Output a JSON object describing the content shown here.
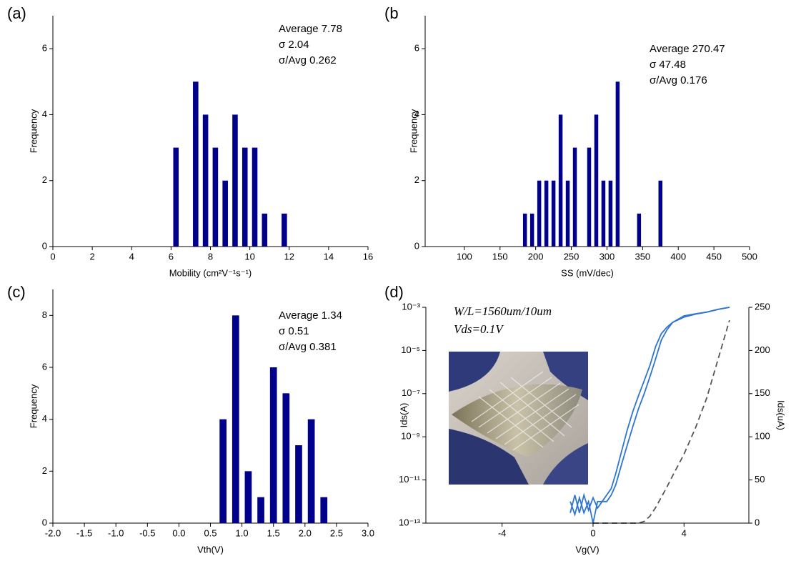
{
  "chart_data": [
    {
      "type": "bar",
      "label": "(a)",
      "color": "#00008b",
      "x": [
        6.25,
        7.25,
        7.75,
        8.25,
        8.75,
        9.25,
        9.75,
        10.25,
        10.75,
        11.75
      ],
      "values": [
        3,
        5,
        4,
        3,
        2,
        4,
        3,
        3,
        1,
        1
      ],
      "xlim": [
        0,
        16
      ],
      "xticks": [
        0,
        2,
        4,
        6,
        8,
        10,
        12,
        14,
        16
      ],
      "ylim": [
        0,
        7
      ],
      "yticks": [
        0,
        2,
        4,
        6
      ],
      "xlabel": "Mobility (cm²V⁻¹s⁻¹)",
      "ylabel": "Frequency",
      "annotations": [
        "Average 7.78",
        "σ 2.04",
        "σ/Avg 0.262"
      ]
    },
    {
      "type": "bar",
      "label": "(b",
      "color": "#00008b",
      "x": [
        185,
        195,
        205,
        215,
        225,
        235,
        245,
        255,
        275,
        285,
        295,
        305,
        315,
        345,
        375
      ],
      "values": [
        1,
        1,
        2,
        2,
        2,
        4,
        2,
        3,
        3,
        4,
        2,
        2,
        5,
        1,
        2
      ],
      "xlim": [
        45,
        500
      ],
      "xticks": [
        100,
        150,
        200,
        250,
        300,
        350,
        400,
        450,
        500
      ],
      "ylim": [
        0,
        7
      ],
      "yticks": [
        0,
        2,
        4,
        6
      ],
      "xlabel": "SS (mV/dec)",
      "ylabel": "Frequency",
      "annotations": [
        "Average 270.47",
        "σ 47.48",
        "σ/Avg 0.176"
      ]
    },
    {
      "type": "bar",
      "label": "(c)",
      "color": "#00008b",
      "x": [
        0.7,
        0.9,
        1.1,
        1.3,
        1.5,
        1.7,
        1.9,
        2.1,
        2.3
      ],
      "values": [
        4,
        8,
        2,
        1,
        6,
        5,
        3,
        4,
        1
      ],
      "xlim": [
        -2,
        3
      ],
      "xticks": [
        {
          "value": -2,
          "label": "-2.0"
        },
        {
          "value": -1.5,
          "label": "-1.5"
        },
        {
          "value": -1,
          "label": "-1.0"
        },
        {
          "value": -0.5,
          "label": "-0.5"
        },
        {
          "value": 0,
          "label": "0.0"
        },
        {
          "value": 0.5,
          "label": "0.5"
        },
        {
          "value": 1,
          "label": "1.0"
        },
        {
          "value": 1.5,
          "label": "1.5"
        },
        {
          "value": 2,
          "label": "2.0"
        },
        {
          "value": 2.5,
          "label": "2.5"
        },
        {
          "value": 3,
          "label": "3.0"
        }
      ],
      "ylim": [
        0,
        9
      ],
      "yticks": [
        0,
        2,
        4,
        6,
        8
      ],
      "xlabel": "Vth(V)",
      "ylabel": "Frequency",
      "annotations": [
        "Average 1.34",
        "σ 0.51",
        "σ/Avg 0.381"
      ]
    },
    {
      "type": "line",
      "label": "(d)",
      "yscale": "log",
      "x": [
        -1,
        -0.8,
        -0.6,
        -0.4,
        -0.2,
        0,
        0.2,
        0.4,
        0.6,
        0.8,
        1,
        1.25,
        1.5,
        1.75,
        2,
        2.25,
        2.5,
        2.75,
        3,
        3.25,
        3.5,
        4,
        4.5,
        5,
        5.5,
        6
      ],
      "series": [
        {
          "color": "#2e75d0",
          "axis": "y",
          "values": [
            3e-13,
            2e-12,
            3e-13,
            2e-12,
            4e-13,
            1.5e-12,
            5e-13,
            1e-12,
            2e-12,
            4e-12,
            2e-11,
            2e-10,
            2e-09,
            1.5e-08,
            8e-08,
            4e-07,
            2e-06,
            1.5e-05,
            6e-05,
            0.00012,
            0.0002,
            0.0004,
            0.0005,
            0.0006,
            0.0008,
            0.001
          ]
        },
        {
          "color": "#2e75d0",
          "axis": "y",
          "values": [
            1e-12,
            2.5e-13,
            1.5e-12,
            3e-13,
            1e-12,
            1e-13,
            1e-12,
            1e-12,
            1e-12,
            2e-12,
            6e-12,
            5e-11,
            4e-10,
            3e-09,
            2e-08,
            1e-07,
            6e-07,
            4e-06,
            3e-05,
            9e-05,
            0.0002,
            0.00035,
            0.00048,
            0.0006,
            0.0008,
            0.001
          ]
        },
        {
          "color": "#555555",
          "axis": "y2",
          "dashed": true,
          "values": [
            null,
            null,
            null,
            null,
            null,
            0,
            0,
            0,
            0,
            0,
            0,
            0,
            0,
            0,
            0,
            2,
            8,
            18,
            30,
            42,
            55,
            80,
            110,
            145,
            190,
            235
          ]
        }
      ],
      "xlim": [
        -7.35,
        6.85
      ],
      "xticks": [
        -4,
        0,
        4
      ],
      "ylim": [
        1e-13,
        0.001
      ],
      "yticks": [
        {
          "value": 1e-13,
          "label": "10⁻¹³"
        },
        {
          "value": 1e-11,
          "label": "10⁻¹¹"
        },
        {
          "value": 1e-09,
          "label": "10⁻⁹"
        },
        {
          "value": 1e-07,
          "label": "10⁻⁷"
        },
        {
          "value": 1e-05,
          "label": "10⁻⁵"
        },
        {
          "value": 0.001,
          "label": "10⁻³"
        }
      ],
      "y2lim": [
        0,
        250
      ],
      "y2ticks": [
        0,
        50,
        100,
        150,
        200,
        250
      ],
      "xlabel": "Vg(V)",
      "ylabel": "Ids(A)",
      "y2label": "Ids(uA)",
      "annotations": [
        "W/L=1560um/10um",
        "Vds=0.1V"
      ]
    }
  ]
}
